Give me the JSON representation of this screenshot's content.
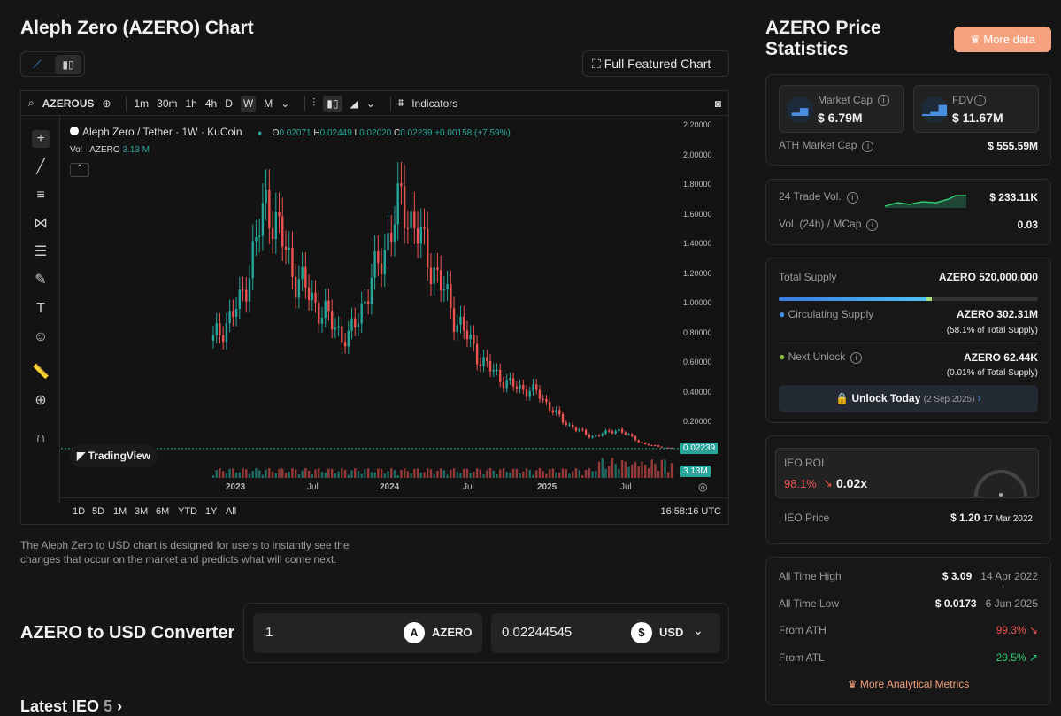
{
  "page": {
    "title": "Aleph Zero (AZERO) Chart",
    "description": "The Aleph Zero to USD chart is designed for users to instantly see the changes that occur on the market and predicts what will come next.",
    "full_chart": "Full Featured Chart",
    "latest_ieo": "Latest IEO",
    "latest_ieo_count": "5"
  },
  "tv": {
    "symbol": "AZEROUS",
    "intervals": [
      "1m",
      "30m",
      "1h",
      "4h",
      "D",
      "W",
      "M"
    ],
    "indicators": "Indicators",
    "legend_title": "Aleph Zero / Tether · 1W · KuCoin",
    "ohlc": {
      "o_label": "O",
      "o": "0.02071",
      "h_label": "H",
      "h": "0.02449",
      "l_label": "L",
      "l": "0.02020",
      "c_label": "C",
      "c": "0.02239",
      "chg": "+0.00158 (+7.59%)"
    },
    "vol_label": "Vol · AZERO",
    "vol": "3.13 M",
    "watermark": "TradingView",
    "price_tag": "0.02239",
    "vol_tag": "3.13M",
    "ranges": [
      "1D",
      "5D",
      "1M",
      "3M",
      "6M",
      "YTD",
      "1Y",
      "All"
    ],
    "time": "16:58:16 UTC",
    "y_ticks": [
      "2.20000",
      "2.00000",
      "1.80000",
      "1.60000",
      "1.40000",
      "1.20000",
      "1.00000",
      "0.80000",
      "0.60000",
      "0.40000",
      "0.20000"
    ],
    "x_ticks": [
      "2023",
      "Jul",
      "2024",
      "Jul",
      "2025",
      "Jul"
    ]
  },
  "chart_data": {
    "type": "candlestick",
    "ylim": [
      0,
      2.2
    ],
    "x": [
      "2022-W46",
      "2023-W01",
      "2023-W07",
      "2023-W20",
      "2023-W27",
      "2023-W37",
      "2024-W01",
      "2024-W04",
      "2024-W10",
      "2024-W20",
      "2024-W27",
      "2024-W37",
      "2024-W48",
      "2025-W05",
      "2025-W14",
      "2025-W22",
      "2025-W27",
      "2025-W35"
    ],
    "close": [
      0.75,
      1.0,
      1.7,
      1.2,
      0.95,
      0.75,
      1.2,
      1.7,
      1.3,
      0.9,
      0.6,
      0.45,
      0.4,
      0.2,
      0.1,
      0.15,
      0.05,
      0.022
    ]
  },
  "stats": {
    "title": "AZERO Price Statistics",
    "more_data": "More data",
    "market_cap_label": "Market Cap",
    "market_cap": "$ 6.79M",
    "fdv_label": "FDV",
    "fdv": "$ 11.67M",
    "ath_mcap_label": "ATH Market Cap",
    "ath_mcap": "$ 555.59M",
    "trade_vol_label": "24 Trade Vol.",
    "trade_vol": "$ 233.11K",
    "vol_mcap_label": "Vol. (24h) / MCap",
    "vol_mcap": "0.03",
    "total_supply_label": "Total Supply",
    "total_supply": "AZERO 520,000,000",
    "supply_fraction": 0.581,
    "circ_label": "Circulating Supply",
    "circ": "AZERO 302.31M",
    "circ_pct": "(58.1% of Total Supply)",
    "unlock_label": "Next Unlock",
    "unlock": "AZERO 62.44K",
    "unlock_pct": "(0.01% of Total Supply)",
    "unlock_today": "Unlock Today",
    "unlock_date": "(2 Sep 2025)",
    "ieo_roi_label": "IEO ROI",
    "ieo_roi_pct": "98.1%",
    "ieo_roi_x": "0.02x",
    "ieo_price_label": "IEO Price",
    "ieo_price": "$ 1.20",
    "ieo_date": "17 Mar 2022",
    "ath_label": "All Time High",
    "ath": "$ 3.09",
    "ath_date": "14 Apr 2022",
    "atl_label": "All Time Low",
    "atl": "$ 0.0173",
    "atl_date": "6 Jun 2025",
    "from_ath_label": "From ATH",
    "from_ath": "99.3%",
    "from_atl_label": "From ATL",
    "from_atl": "29.5%",
    "more_metrics": "More Analytical Metrics"
  },
  "converter": {
    "title": "AZERO to USD Converter",
    "amount": "1",
    "from": "AZERO",
    "result": "0.02244545",
    "to": "USD"
  },
  "colors": {
    "up": "#26a69a",
    "down": "#ef5350",
    "accent": "#f5a17d"
  }
}
